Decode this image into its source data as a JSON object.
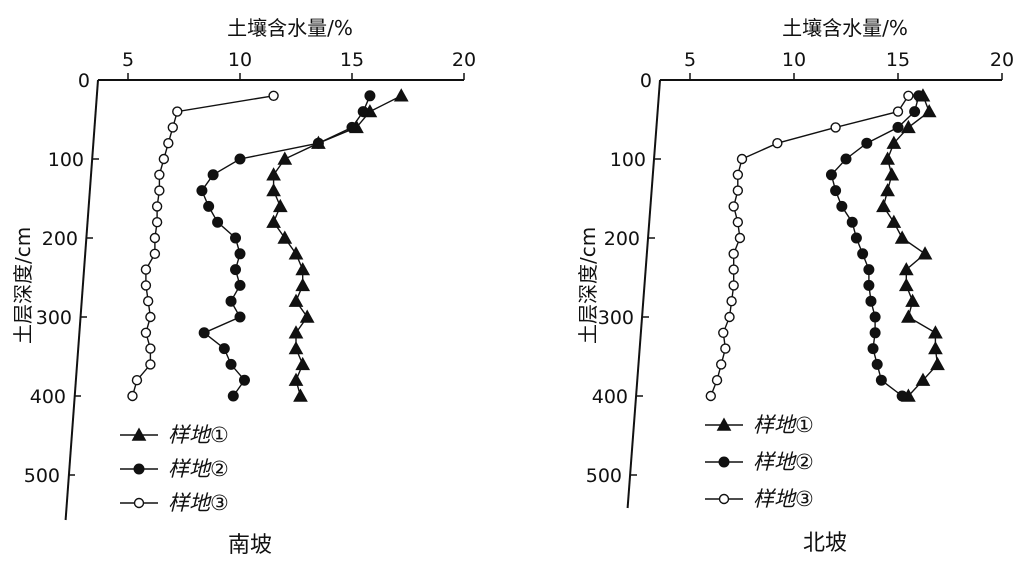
{
  "chart_data": [
    {
      "type": "line",
      "orientation": "depth-profile",
      "caption": "南坡",
      "xlabel": "土壤含水量/%",
      "ylabel": "土层深度/cm",
      "xlim": [
        5,
        20
      ],
      "ylim": [
        0,
        500
      ],
      "x_ticks": [
        5,
        10,
        15,
        20
      ],
      "y_ticks": [
        0,
        100,
        200,
        300,
        400,
        500
      ],
      "x_axis_position": "top",
      "grid": false,
      "legend_position": "bottom-left",
      "series": [
        {
          "name": "样地①",
          "marker": "triangle",
          "points": [
            [
              17.2,
              20
            ],
            [
              15.8,
              40
            ],
            [
              15.2,
              60
            ],
            [
              13.5,
              80
            ],
            [
              12.0,
              100
            ],
            [
              11.5,
              120
            ],
            [
              11.5,
              140
            ],
            [
              11.8,
              160
            ],
            [
              11.5,
              180
            ],
            [
              12.0,
              200
            ],
            [
              12.5,
              220
            ],
            [
              12.8,
              240
            ],
            [
              12.8,
              260
            ],
            [
              12.5,
              280
            ],
            [
              13.0,
              300
            ],
            [
              12.5,
              320
            ],
            [
              12.5,
              340
            ],
            [
              12.8,
              360
            ],
            [
              12.5,
              380
            ],
            [
              12.7,
              400
            ]
          ]
        },
        {
          "name": "样地②",
          "marker": "filled-circle",
          "points": [
            [
              15.8,
              20
            ],
            [
              15.5,
              40
            ],
            [
              15.0,
              60
            ],
            [
              13.5,
              80
            ],
            [
              10.0,
              100
            ],
            [
              8.8,
              120
            ],
            [
              8.3,
              140
            ],
            [
              8.6,
              160
            ],
            [
              9.0,
              180
            ],
            [
              9.8,
              200
            ],
            [
              10.0,
              220
            ],
            [
              9.8,
              240
            ],
            [
              10.0,
              260
            ],
            [
              9.6,
              280
            ],
            [
              10.0,
              300
            ],
            [
              8.4,
              320
            ],
            [
              9.3,
              340
            ],
            [
              9.6,
              360
            ],
            [
              10.2,
              380
            ],
            [
              9.7,
              400
            ]
          ]
        },
        {
          "name": "样地③",
          "marker": "open-circle",
          "points": [
            [
              11.5,
              20
            ],
            [
              7.2,
              40
            ],
            [
              7.0,
              60
            ],
            [
              6.8,
              80
            ],
            [
              6.6,
              100
            ],
            [
              6.4,
              120
            ],
            [
              6.4,
              140
            ],
            [
              6.3,
              160
            ],
            [
              6.3,
              180
            ],
            [
              6.2,
              200
            ],
            [
              6.2,
              220
            ],
            [
              5.8,
              240
            ],
            [
              5.8,
              260
            ],
            [
              5.9,
              280
            ],
            [
              6.0,
              300
            ],
            [
              5.8,
              320
            ],
            [
              6.0,
              340
            ],
            [
              6.0,
              360
            ],
            [
              5.4,
              380
            ],
            [
              5.2,
              400
            ]
          ]
        }
      ]
    },
    {
      "type": "line",
      "orientation": "depth-profile",
      "caption": "北坡",
      "xlabel": "土壤含水量/%",
      "ylabel": "土层深度/cm",
      "xlim": [
        5,
        20
      ],
      "ylim": [
        0,
        500
      ],
      "x_ticks": [
        5,
        10,
        15,
        20
      ],
      "y_ticks": [
        0,
        100,
        200,
        300,
        400,
        500
      ],
      "x_axis_position": "top",
      "grid": false,
      "legend_position": "bottom-left",
      "series": [
        {
          "name": "样地①",
          "marker": "triangle",
          "points": [
            [
              16.2,
              20
            ],
            [
              16.5,
              40
            ],
            [
              15.5,
              60
            ],
            [
              14.8,
              80
            ],
            [
              14.5,
              100
            ],
            [
              14.7,
              120
            ],
            [
              14.5,
              140
            ],
            [
              14.3,
              160
            ],
            [
              14.8,
              180
            ],
            [
              15.2,
              200
            ],
            [
              16.3,
              220
            ],
            [
              15.4,
              240
            ],
            [
              15.4,
              260
            ],
            [
              15.7,
              280
            ],
            [
              15.5,
              300
            ],
            [
              16.8,
              320
            ],
            [
              16.8,
              340
            ],
            [
              16.9,
              360
            ],
            [
              16.2,
              380
            ],
            [
              15.5,
              400
            ]
          ]
        },
        {
          "name": "样地②",
          "marker": "filled-circle",
          "points": [
            [
              16.0,
              20
            ],
            [
              15.8,
              40
            ],
            [
              15.0,
              60
            ],
            [
              13.5,
              80
            ],
            [
              12.5,
              100
            ],
            [
              11.8,
              120
            ],
            [
              12.0,
              140
            ],
            [
              12.3,
              160
            ],
            [
              12.8,
              180
            ],
            [
              13.0,
              200
            ],
            [
              13.3,
              220
            ],
            [
              13.6,
              240
            ],
            [
              13.6,
              260
            ],
            [
              13.7,
              280
            ],
            [
              13.9,
              300
            ],
            [
              13.9,
              320
            ],
            [
              13.8,
              340
            ],
            [
              14.0,
              360
            ],
            [
              14.2,
              380
            ],
            [
              15.2,
              400
            ]
          ]
        },
        {
          "name": "样地③",
          "marker": "open-circle",
          "points": [
            [
              15.5,
              20
            ],
            [
              15.0,
              40
            ],
            [
              12.0,
              60
            ],
            [
              9.2,
              80
            ],
            [
              7.5,
              100
            ],
            [
              7.3,
              120
            ],
            [
              7.3,
              140
            ],
            [
              7.1,
              160
            ],
            [
              7.3,
              180
            ],
            [
              7.4,
              200
            ],
            [
              7.1,
              220
            ],
            [
              7.1,
              240
            ],
            [
              7.1,
              260
            ],
            [
              7.0,
              280
            ],
            [
              6.9,
              300
            ],
            [
              6.6,
              320
            ],
            [
              6.7,
              340
            ],
            [
              6.5,
              360
            ],
            [
              6.3,
              380
            ],
            [
              6.0,
              400
            ]
          ]
        }
      ]
    }
  ]
}
